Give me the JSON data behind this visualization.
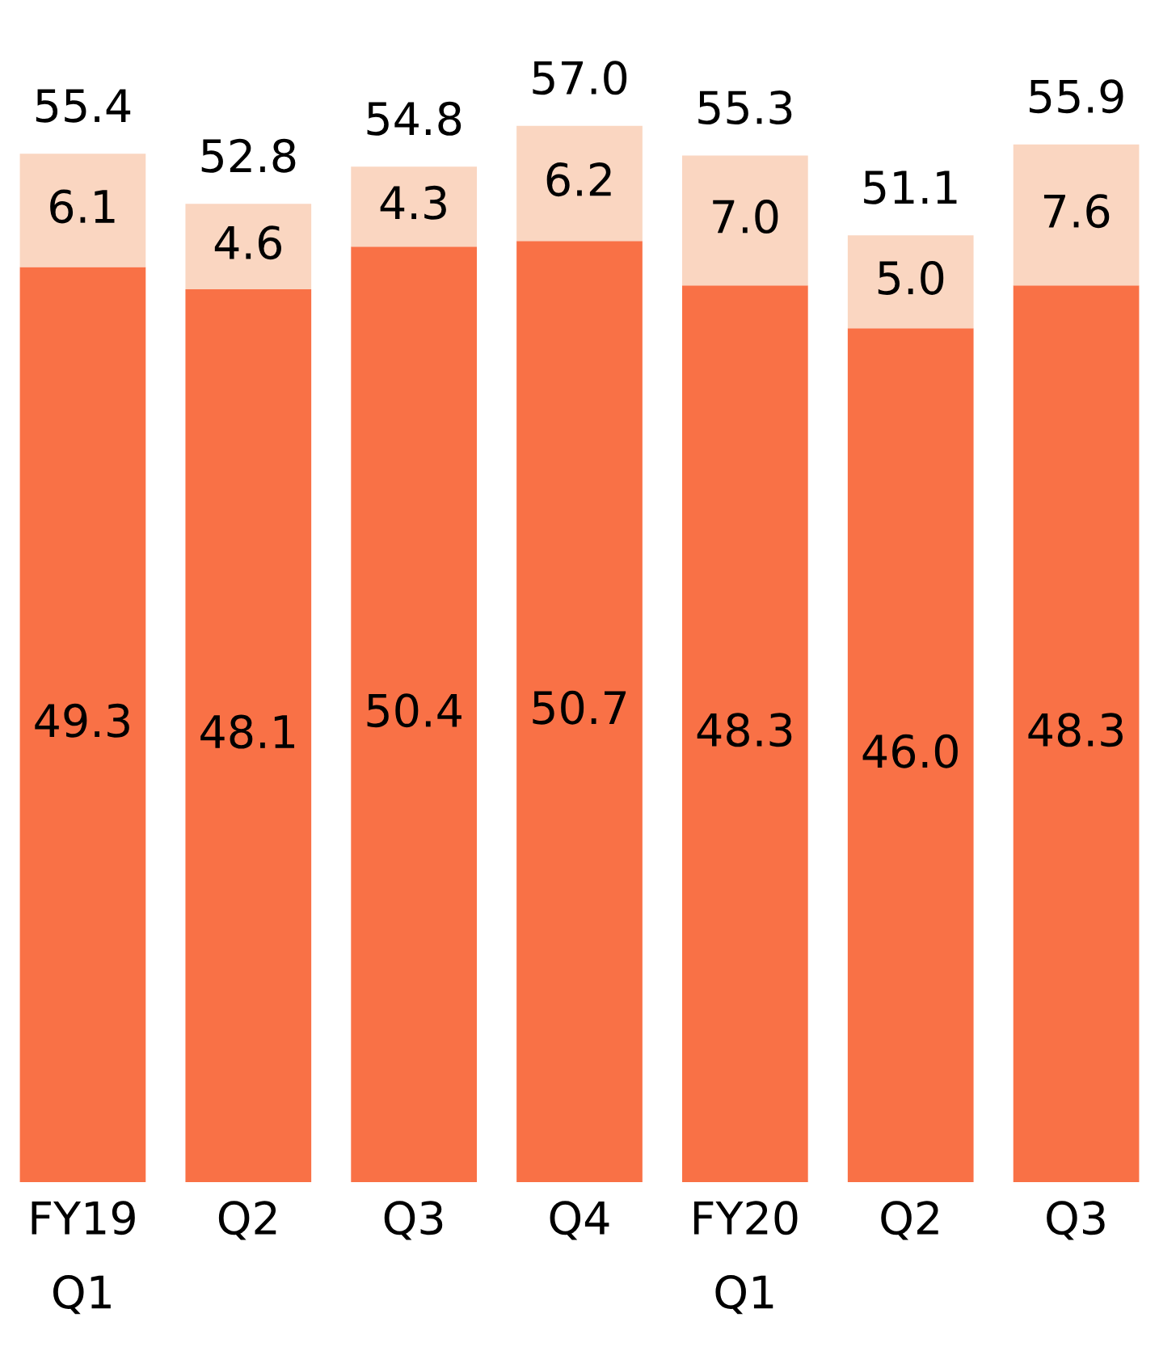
{
  "chart_data": {
    "type": "bar",
    "stacked": true,
    "categories": [
      "FY19\nQ1",
      "Q2",
      "Q3",
      "Q4",
      "FY20\nQ1",
      "Q2",
      "Q3"
    ],
    "series": [
      {
        "color": "#f97146",
        "values": [
          49.3,
          48.1,
          50.4,
          50.7,
          48.3,
          46.0,
          48.3
        ],
        "value_labels": [
          "49.3",
          "48.1",
          "50.4",
          "50.7",
          "48.3",
          "46.0",
          "48.3"
        ]
      },
      {
        "color": "#fad6c1",
        "values": [
          6.1,
          4.6,
          4.3,
          6.2,
          7.0,
          5.0,
          7.6
        ],
        "value_labels": [
          "6.1",
          "4.6",
          "4.3",
          "6.2",
          "7.0",
          "5.0",
          "7.6"
        ]
      }
    ],
    "totals": [
      "55.4",
      "52.8",
      "54.8",
      "57.0",
      "55.3",
      "51.1",
      "55.9"
    ],
    "grid": false,
    "legend": false
  }
}
